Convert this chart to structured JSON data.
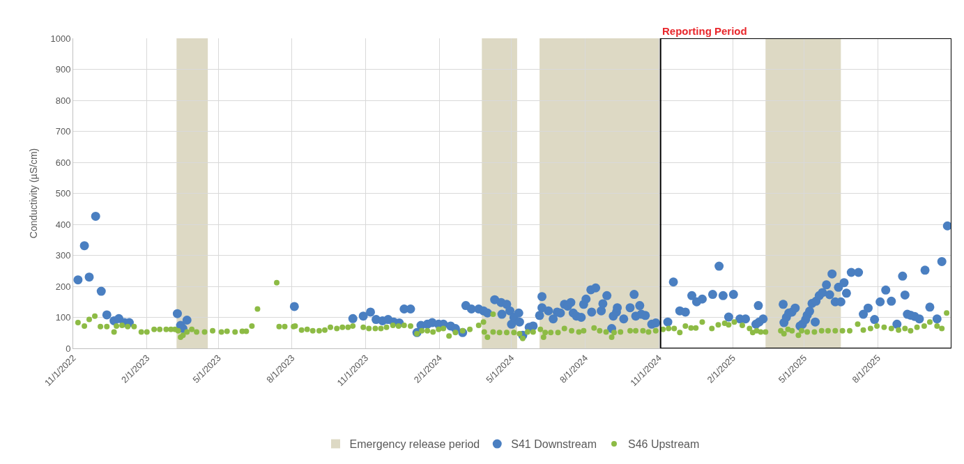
{
  "chart_data": {
    "type": "scatter",
    "ylabel": "Conductivity (µS/cm)",
    "xlim": [
      "2022-11-01",
      "2025-11-01"
    ],
    "xticks": [
      {
        "value": "2022-11-01",
        "label": "11/1/2022"
      },
      {
        "value": "2023-02-01",
        "label": "2/1/2023"
      },
      {
        "value": "2023-05-01",
        "label": "5/1/2023"
      },
      {
        "value": "2023-08-01",
        "label": "8/1/2023"
      },
      {
        "value": "2023-11-01",
        "label": "11/1/2023"
      },
      {
        "value": "2024-02-01",
        "label": "2/1/2024"
      },
      {
        "value": "2024-05-01",
        "label": "5/1/2024"
      },
      {
        "value": "2024-08-01",
        "label": "8/1/2024"
      },
      {
        "value": "2024-11-01",
        "label": "11/1/2024"
      },
      {
        "value": "2025-02-01",
        "label": "2/1/2025"
      },
      {
        "value": "2025-05-01",
        "label": "5/1/2025"
      },
      {
        "value": "2025-08-01",
        "label": "8/1/2025"
      }
    ],
    "ylim": [
      0,
      1000
    ],
    "yticks": [
      0,
      100,
      200,
      300,
      400,
      500,
      600,
      700,
      800,
      900,
      1000
    ],
    "grid": true,
    "legend": "bottom",
    "marker": "circle",
    "bands": [
      {
        "axis": "x",
        "from": "2023-03-10",
        "to": "2023-04-18",
        "label": "Emergency release period",
        "color": "#ddd9c4"
      },
      {
        "axis": "x",
        "from": "2024-03-25",
        "to": "2024-05-08",
        "color": "#ddd9c4"
      },
      {
        "axis": "x",
        "from": "2024-06-05",
        "to": "2024-11-02",
        "color": "#ddd9c4"
      },
      {
        "axis": "x",
        "from": "2025-03-14",
        "to": "2025-06-16",
        "color": "#ddd9c4"
      }
    ],
    "annotations": [
      {
        "text": "Reporting Period",
        "x": "2024-11-03",
        "y": 1000
      }
    ],
    "series": [
      {
        "name": "S41 Downstream",
        "color": "#4a7fc1",
        "x": [
          "2022-11-07",
          "2022-11-15",
          "2022-11-21",
          "2022-11-29",
          "2022-12-06",
          "2022-12-13",
          "2022-12-22",
          "2022-12-28",
          "2023-01-04",
          "2023-01-10",
          "2023-03-11",
          "2023-03-15",
          "2023-03-18",
          "2023-03-23",
          "2023-08-04",
          "2023-10-16",
          "2023-10-29",
          "2023-11-07",
          "2023-11-14",
          "2023-11-22",
          "2023-11-29",
          "2023-12-06",
          "2023-12-13",
          "2023-12-19",
          "2023-12-27",
          "2024-01-04",
          "2024-01-09",
          "2024-01-17",
          "2024-01-23",
          "2024-01-31",
          "2024-02-06",
          "2024-02-15",
          "2024-02-21",
          "2024-03-01",
          "2024-03-05",
          "2024-03-12",
          "2024-03-21",
          "2024-03-27",
          "2024-04-01",
          "2024-04-10",
          "2024-04-18",
          "2024-04-19",
          "2024-04-25",
          "2024-04-29",
          "2024-05-01",
          "2024-05-04",
          "2024-05-10",
          "2024-05-11",
          "2024-05-15",
          "2024-05-23",
          "2024-05-28",
          "2024-06-05",
          "2024-06-08",
          "2024-06-08",
          "2024-06-16",
          "2024-06-22",
          "2024-06-27",
          "2024-07-01",
          "2024-07-06",
          "2024-07-10",
          "2024-07-14",
          "2024-07-17",
          "2024-07-21",
          "2024-07-27",
          "2024-07-30",
          "2024-08-02",
          "2024-08-08",
          "2024-08-09",
          "2024-08-14",
          "2024-08-21",
          "2024-08-23",
          "2024-08-28",
          "2024-09-03",
          "2024-09-05",
          "2024-09-09",
          "2024-09-10",
          "2024-09-18",
          "2024-09-26",
          "2024-10-01",
          "2024-10-03",
          "2024-10-08",
          "2024-10-10",
          "2024-10-15",
          "2024-10-23",
          "2024-10-28",
          "2024-11-12",
          "2024-11-19",
          "2024-11-27",
          "2024-12-04",
          "2024-12-12",
          "2024-12-18",
          "2024-12-25",
          "2025-01-07",
          "2025-01-15",
          "2025-01-20",
          "2025-01-27",
          "2025-02-02",
          "2025-02-10",
          "2025-02-17",
          "2025-03-02",
          "2025-03-05",
          "2025-03-06",
          "2025-03-11",
          "2025-04-05",
          "2025-04-06",
          "2025-04-09",
          "2025-04-12",
          "2025-04-16",
          "2025-04-20",
          "2025-04-26",
          "2025-04-29",
          "2025-05-03",
          "2025-05-05",
          "2025-05-08",
          "2025-05-11",
          "2025-05-15",
          "2025-05-16",
          "2025-05-20",
          "2025-05-24",
          "2025-05-29",
          "2025-06-02",
          "2025-06-05",
          "2025-06-09",
          "2025-06-13",
          "2025-06-16",
          "2025-06-20",
          "2025-06-23",
          "2025-06-29",
          "2025-07-08",
          "2025-07-14",
          "2025-07-20",
          "2025-07-28",
          "2025-08-04",
          "2025-08-11",
          "2025-08-18",
          "2025-08-25",
          "2025-09-01",
          "2025-09-04",
          "2025-09-07",
          "2025-09-11",
          "2025-09-16",
          "2025-09-22",
          "2025-09-29",
          "2025-10-05",
          "2025-10-14",
          "2025-10-20",
          "2025-10-27"
        ],
        "values": [
          221,
          331,
          230,
          426,
          184,
          108,
          89,
          96,
          83,
          83,
          112,
          74,
          64,
          91,
          135,
          96,
          104,
          117,
          93,
          89,
          93,
          85,
          82,
          127,
          127,
          51,
          74,
          78,
          83,
          78,
          78,
          72,
          64,
          51,
          138,
          127,
          127,
          121,
          114,
          157,
          148,
          110,
          142,
          121,
          78,
          100,
          114,
          85,
          42,
          68,
          72,
          106,
          167,
          131,
          121,
          95,
          117,
          114,
          142,
          136,
          148,
          114,
          104,
          100,
          142,
          159,
          189,
          117,
          195,
          121,
          144,
          170,
          64,
          104,
          117,
          131,
          95,
          131,
          174,
          104,
          138,
          110,
          106,
          78,
          82,
          85,
          214,
          121,
          117,
          170,
          150,
          159,
          174,
          265,
          170,
          101,
          174,
          95,
          95,
          78,
          138,
          85,
          95,
          142,
          83,
          100,
          114,
          117,
          130,
          72,
          78,
          93,
          107,
          120,
          145,
          85,
          152,
          170,
          180,
          205,
          173,
          240,
          150,
          197,
          150,
          212,
          178,
          245,
          245,
          110,
          130,
          93,
          150,
          188,
          152,
          78,
          233,
          172,
          110,
          107,
          103,
          95,
          252,
          133,
          95,
          280,
          395
        ]
      },
      {
        "name": "S46 Upstream",
        "color": "#8dbb45",
        "x": [
          "2022-11-07",
          "2022-11-15",
          "2022-11-21",
          "2022-11-28",
          "2022-12-05",
          "2022-12-13",
          "2022-12-22",
          "2022-12-25",
          "2023-01-01",
          "2023-01-08",
          "2023-01-16",
          "2023-01-25",
          "2023-02-01",
          "2023-02-10",
          "2023-02-17",
          "2023-02-25",
          "2023-03-03",
          "2023-03-08",
          "2023-03-12",
          "2023-03-15",
          "2023-03-18",
          "2023-03-23",
          "2023-03-29",
          "2023-04-04",
          "2023-04-14",
          "2023-04-24",
          "2023-05-05",
          "2023-05-12",
          "2023-05-22",
          "2023-05-31",
          "2023-06-05",
          "2023-06-12",
          "2023-06-19",
          "2023-07-13",
          "2023-07-16",
          "2023-07-23",
          "2023-08-03",
          "2023-08-05",
          "2023-08-13",
          "2023-08-20",
          "2023-08-27",
          "2023-09-04",
          "2023-09-11",
          "2023-09-18",
          "2023-09-26",
          "2023-10-03",
          "2023-10-10",
          "2023-10-16",
          "2023-10-29",
          "2023-11-05",
          "2023-11-13",
          "2023-11-20",
          "2023-11-27",
          "2023-12-05",
          "2023-12-12",
          "2023-12-19",
          "2023-12-27",
          "2024-01-04",
          "2024-01-10",
          "2024-01-17",
          "2024-01-24",
          "2024-01-31",
          "2024-02-06",
          "2024-02-13",
          "2024-02-21",
          "2024-03-01",
          "2024-03-10",
          "2024-03-21",
          "2024-03-27",
          "2024-03-28",
          "2024-04-01",
          "2024-04-08",
          "2024-04-08",
          "2024-04-16",
          "2024-04-25",
          "2024-05-04",
          "2024-05-11",
          "2024-05-15",
          "2024-05-21",
          "2024-05-28",
          "2024-06-06",
          "2024-06-10",
          "2024-06-12",
          "2024-06-19",
          "2024-06-28",
          "2024-07-06",
          "2024-07-15",
          "2024-07-24",
          "2024-07-30",
          "2024-08-12",
          "2024-08-19",
          "2024-08-27",
          "2024-09-03",
          "2024-09-06",
          "2024-09-14",
          "2024-09-26",
          "2024-10-03",
          "2024-10-12",
          "2024-10-19",
          "2024-10-28",
          "2024-11-06",
          "2024-11-13",
          "2024-11-20",
          "2024-11-27",
          "2024-12-04",
          "2024-12-11",
          "2024-12-17",
          "2024-12-25",
          "2025-01-06",
          "2025-01-14",
          "2025-01-22",
          "2025-01-27",
          "2025-02-03",
          "2025-02-13",
          "2025-02-22",
          "2025-02-26",
          "2025-03-03",
          "2025-03-08",
          "2025-03-14",
          "2025-04-02",
          "2025-04-06",
          "2025-04-11",
          "2025-04-16",
          "2025-04-24",
          "2025-04-28",
          "2025-05-05",
          "2025-05-14",
          "2025-05-23",
          "2025-05-31",
          "2025-06-09",
          "2025-06-18",
          "2025-06-27",
          "2025-07-07",
          "2025-07-14",
          "2025-07-23",
          "2025-07-31",
          "2025-08-09",
          "2025-08-18",
          "2025-08-27",
          "2025-09-04",
          "2025-09-11",
          "2025-09-19",
          "2025-09-28",
          "2025-10-05",
          "2025-10-14",
          "2025-10-20",
          "2025-10-26"
        ],
        "values": [
          83,
          72,
          93,
          104,
          70,
          70,
          53,
          72,
          74,
          70,
          70,
          53,
          53,
          61,
          61,
          61,
          61,
          61,
          57,
          36,
          42,
          53,
          61,
          53,
          53,
          57,
          53,
          55,
          53,
          55,
          55,
          72,
          127,
          212,
          70,
          70,
          70,
          72,
          59,
          61,
          57,
          57,
          59,
          68,
          64,
          68,
          68,
          72,
          68,
          64,
          64,
          64,
          68,
          74,
          72,
          74,
          72,
          47,
          57,
          57,
          53,
          61,
          64,
          40,
          51,
          57,
          61,
          74,
          85,
          53,
          36,
          110,
          53,
          51,
          51,
          51,
          47,
          32,
          53,
          53,
          61,
          36,
          51,
          51,
          51,
          64,
          57,
          53,
          57,
          66,
          57,
          53,
          36,
          51,
          53,
          57,
          57,
          57,
          53,
          57,
          61,
          64,
          64,
          51,
          72,
          66,
          66,
          85,
          64,
          76,
          81,
          76,
          85,
          74,
          64,
          51,
          57,
          53,
          53,
          57,
          47,
          61,
          57,
          42,
          57,
          53,
          53,
          57,
          57,
          57,
          57,
          57,
          78,
          59,
          64,
          72,
          68,
          64,
          59,
          64,
          57,
          68,
          72,
          85,
          72,
          64,
          114
        ]
      }
    ]
  }
}
